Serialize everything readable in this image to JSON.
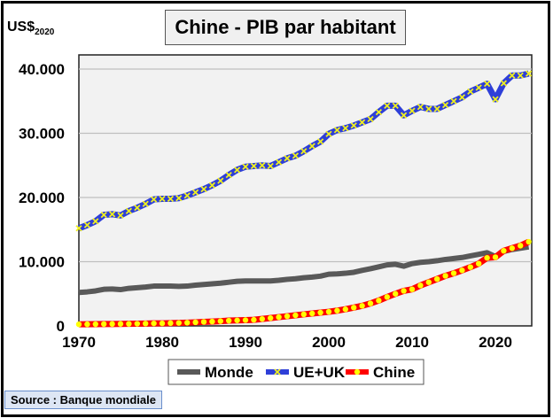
{
  "chart_data": {
    "type": "line",
    "title": "Chine - PIB par habitant",
    "ylabel": "US$",
    "ylabel_sub": "2020",
    "xlim": [
      1970,
      2024
    ],
    "ylim": [
      0,
      40000
    ],
    "xticks": [
      "1970",
      "1980",
      "1990",
      "2000",
      "2010",
      "2020"
    ],
    "yticks": [
      "0",
      "10.000",
      "20.000",
      "30.000",
      "40.000"
    ],
    "grid": true,
    "legend_position": "bottom",
    "x": [
      1970,
      1971,
      1972,
      1973,
      1974,
      1975,
      1976,
      1977,
      1978,
      1979,
      1980,
      1981,
      1982,
      1983,
      1984,
      1985,
      1986,
      1987,
      1988,
      1989,
      1990,
      1991,
      1992,
      1993,
      1994,
      1995,
      1996,
      1997,
      1998,
      1999,
      2000,
      2001,
      2002,
      2003,
      2004,
      2005,
      2006,
      2007,
      2008,
      2009,
      2010,
      2011,
      2012,
      2013,
      2014,
      2015,
      2016,
      2017,
      2018,
      2019,
      2020,
      2021,
      2022,
      2023,
      2024
    ],
    "series": [
      {
        "name": "Monde",
        "color": "#595959",
        "values": [
          5200,
          5300,
          5450,
          5700,
          5750,
          5650,
          5850,
          5950,
          6050,
          6200,
          6200,
          6200,
          6150,
          6200,
          6350,
          6450,
          6550,
          6650,
          6800,
          6950,
          7000,
          7000,
          7000,
          7000,
          7100,
          7250,
          7350,
          7500,
          7600,
          7750,
          8050,
          8100,
          8200,
          8350,
          8650,
          8900,
          9200,
          9500,
          9600,
          9300,
          9700,
          9900,
          10000,
          10150,
          10350,
          10500,
          10650,
          10900,
          11150,
          11400,
          10800,
          11600,
          11900,
          12100,
          12300
        ]
      },
      {
        "name": "UE+UK",
        "color": "#2e3fd8",
        "marker": "#f0f020",
        "values": [
          15200,
          15700,
          16300,
          17300,
          17400,
          17200,
          17900,
          18400,
          19000,
          19700,
          19800,
          19800,
          19900,
          20300,
          20800,
          21300,
          21900,
          22600,
          23500,
          24300,
          24800,
          24900,
          25000,
          24900,
          25500,
          26100,
          26500,
          27200,
          28000,
          28700,
          29900,
          30500,
          30800,
          31200,
          31700,
          32200,
          33300,
          34300,
          34300,
          32800,
          33500,
          34100,
          33800,
          33800,
          34400,
          35000,
          35600,
          36500,
          37100,
          37700,
          35300,
          37800,
          39000,
          39000,
          39300
        ]
      },
      {
        "name": "Chine",
        "color": "#ff0000",
        "marker": "#ffff00",
        "values": [
          250,
          260,
          270,
          290,
          300,
          310,
          320,
          340,
          370,
          390,
          400,
          430,
          460,
          500,
          560,
          630,
          680,
          740,
          820,
          860,
          900,
          950,
          1080,
          1220,
          1370,
          1510,
          1650,
          1800,
          1930,
          2070,
          2200,
          2380,
          2590,
          2850,
          3130,
          3500,
          3950,
          4500,
          5000,
          5450,
          5700,
          6300,
          6800,
          7300,
          7800,
          8200,
          8650,
          9150,
          9700,
          10600,
          10700,
          11700,
          12100,
          12500,
          13100
        ]
      }
    ],
    "source": "Source : Banque mondiale"
  }
}
